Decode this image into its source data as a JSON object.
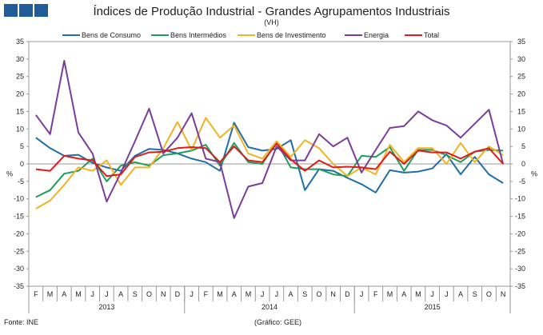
{
  "chart_data": {
    "type": "line",
    "title": "Índices de Produção Industrial - Grandes Agrupamentos Industriais",
    "subtitle": "(VH)",
    "ylabel_left": "%",
    "ylabel_right": "%",
    "ylim": [
      -35,
      35
    ],
    "yticks": [
      35,
      30,
      25,
      20,
      15,
      10,
      5,
      0,
      -5,
      -10,
      -15,
      -20,
      -25,
      -30,
      -35
    ],
    "months": [
      "F",
      "M",
      "A",
      "M",
      "J",
      "J",
      "A",
      "S",
      "O",
      "N",
      "D",
      "J",
      "F",
      "M",
      "A",
      "M",
      "J",
      "J",
      "A",
      "S",
      "O",
      "N",
      "D",
      "J",
      "F",
      "M",
      "A",
      "M",
      "J",
      "J",
      "A",
      "S",
      "O",
      "N"
    ],
    "years": [
      {
        "label": "2013",
        "start": 0,
        "end": 10
      },
      {
        "label": "2014",
        "start": 11,
        "end": 22
      },
      {
        "label": "2015",
        "start": 23,
        "end": 33
      }
    ],
    "series": [
      {
        "name": "Bens de Consumo",
        "color": "#1f6fa6",
        "values": [
          7.5,
          4.5,
          2.3,
          2.6,
          0.3,
          -1.0,
          -2.0,
          2.3,
          4.3,
          4.0,
          3.0,
          1.5,
          0.5,
          -2.0,
          11.8,
          4.8,
          3.8,
          4.3,
          6.8,
          -7.5,
          -1.5,
          -2.0,
          -4.0,
          -5.8,
          -8.2,
          -1.8,
          -2.5,
          -2.2,
          -1.3,
          2.8,
          -3.0,
          2.0,
          -3.0,
          -5.5
        ]
      },
      {
        "name": "Bens Intermédios",
        "color": "#1e9e5a",
        "values": [
          -9.5,
          -7.5,
          -2.8,
          -2.0,
          1.5,
          -5.0,
          -0.5,
          0.5,
          -0.5,
          2.5,
          3.0,
          3.8,
          5.5,
          -0.5,
          6.0,
          0.5,
          0.0,
          6.3,
          -1.0,
          -1.5,
          -1.5,
          -3.0,
          -3.5,
          2.3,
          2.0,
          4.8,
          -2.0,
          4.0,
          4.0,
          2.5,
          0.5,
          3.5,
          4.0,
          3.8
        ]
      },
      {
        "name": "Bens de Investimento",
        "color": "#f0b323",
        "values": [
          -12.8,
          -10.5,
          -6.0,
          -1.0,
          -2.0,
          1.0,
          -6.0,
          -1.0,
          -1.0,
          4.5,
          12.0,
          4.0,
          13.2,
          7.5,
          11.0,
          3.0,
          1.5,
          6.5,
          2.0,
          6.8,
          4.5,
          0.0,
          -3.5,
          -1.0,
          -3.0,
          5.5,
          0.5,
          4.5,
          4.5,
          0.0,
          6.0,
          0.5,
          5.0,
          2.5
        ]
      },
      {
        "name": "Energia",
        "color": "#7a3d99",
        "values": [
          14.0,
          8.5,
          29.5,
          9.0,
          3.0,
          -10.8,
          -2.5,
          6.5,
          15.8,
          3.0,
          7.5,
          14.5,
          1.5,
          0.5,
          -15.5,
          -6.5,
          -5.5,
          5.0,
          1.0,
          1.0,
          8.5,
          5.0,
          7.5,
          -2.5,
          4.0,
          10.3,
          10.8,
          15.0,
          12.5,
          11.0,
          7.5,
          11.5,
          15.5,
          0.0
        ]
      },
      {
        "name": "Total",
        "color": "#e01b1b",
        "values": [
          -1.5,
          -2.0,
          2.3,
          1.5,
          1.0,
          -3.5,
          -3.0,
          2.0,
          3.3,
          3.5,
          4.5,
          4.8,
          4.5,
          0.5,
          5.0,
          1.0,
          0.5,
          5.8,
          1.3,
          -2.0,
          1.0,
          -1.0,
          -0.8,
          -1.0,
          -1.5,
          3.5,
          0.0,
          3.8,
          3.3,
          3.3,
          1.5,
          3.5,
          4.5,
          0.0
        ]
      }
    ]
  },
  "footer": {
    "source": "Fonte: INE",
    "credit": "(Gráfico: GEE)"
  }
}
